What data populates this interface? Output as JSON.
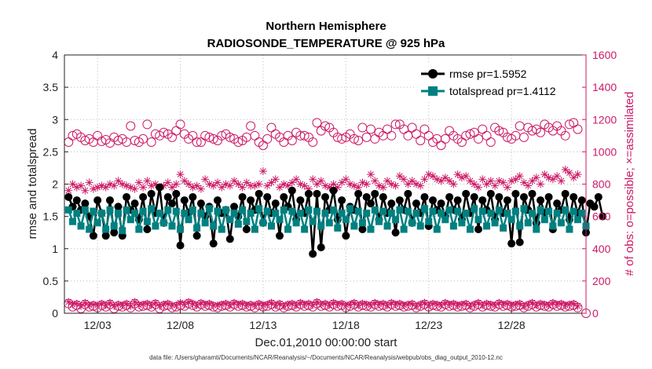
{
  "chart_data": {
    "type": "line",
    "title": "Northern Hemisphere",
    "subtitle": "RADIOSONDE_TEMPERATURE @ 925 hPa",
    "xlabel": "Dec.01,2010 00:00:00 start",
    "ylabel_left": "rmse and totalspread",
    "ylabel_right": "# of obs: o=possible; ×=assimilated",
    "footer": "data file: /Users/gharamti/Documents/NCAR/Reanalysis/~/Documents/NCAR/Reanalysis/webpub/obs_diag_output_2010-12.nc",
    "xlim": [
      1,
      32.5
    ],
    "ylim_left": [
      0,
      4
    ],
    "ylim_right": [
      0,
      1600
    ],
    "yticks_left": [
      "0",
      "0.5",
      "1",
      "1.5",
      "2",
      "2.5",
      "3",
      "3.5",
      "4"
    ],
    "yticks_right": [
      "0",
      "200",
      "400",
      "600",
      "800",
      "1000",
      "1200",
      "1400",
      "1600"
    ],
    "xticks": [
      {
        "x": 3,
        "label": "12/03"
      },
      {
        "x": 8,
        "label": "12/08"
      },
      {
        "x": 13,
        "label": "12/13"
      },
      {
        "x": 18,
        "label": "12/18"
      },
      {
        "x": 23,
        "label": "12/23"
      },
      {
        "x": 28,
        "label": "12/28"
      }
    ],
    "legend": [
      {
        "name": "rmse",
        "label": "rmse pr=1.5952"
      },
      {
        "name": "totalspread",
        "label": "totalspread pr=1.4112"
      }
    ],
    "colors": {
      "rmse": "#000000",
      "totalspread": "#008080",
      "obs": "#cc1a66"
    },
    "grid": true,
    "legend_position": "top-right",
    "x_start": 1.25,
    "x_step": 0.25,
    "series": [
      {
        "name": "rmse",
        "values": [
          1.8,
          1.65,
          1.75,
          1.6,
          1.7,
          1.5,
          1.2,
          1.75,
          1.55,
          1.2,
          1.75,
          1.25,
          1.65,
          1.2,
          1.8,
          1.6,
          1.7,
          1.45,
          1.8,
          1.3,
          1.85,
          1.55,
          1.95,
          1.4,
          1.8,
          1.7,
          1.85,
          1.05,
          1.75,
          1.55,
          1.8,
          1.2,
          1.7,
          1.5,
          1.65,
          1.08,
          1.75,
          1.55,
          1.6,
          1.15,
          1.65,
          1.5,
          1.8,
          1.3,
          1.75,
          1.6,
          1.85,
          1.4,
          1.8,
          1.55,
          1.7,
          1.2,
          1.8,
          1.65,
          1.9,
          1.45,
          1.75,
          1.55,
          1.85,
          0.92,
          1.85,
          1.02,
          1.8,
          1.6,
          1.9,
          1.45,
          1.75,
          1.2,
          1.65,
          1.6,
          1.85,
          1.3,
          1.8,
          1.7,
          1.85,
          1.45,
          1.8,
          1.55,
          1.7,
          1.25,
          1.75,
          1.6,
          1.85,
          1.4,
          1.7,
          1.55,
          1.8,
          1.35,
          1.75,
          1.6,
          1.7,
          1.5,
          1.8,
          1.6,
          1.75,
          1.45,
          1.85,
          1.55,
          1.8,
          1.3,
          1.75,
          1.6,
          1.85,
          1.45,
          1.8,
          1.55,
          1.75,
          1.08,
          1.85,
          1.1,
          1.8,
          1.6,
          1.85,
          1.4,
          1.75,
          1.55,
          1.8,
          1.3,
          1.7,
          1.6,
          1.85,
          1.45,
          1.8,
          1.55,
          1.75,
          1.25,
          1.7,
          1.65,
          1.8,
          1.5
        ]
      },
      {
        "name": "totalspread",
        "values": [
          1.6,
          1.42,
          1.55,
          1.35,
          1.6,
          1.3,
          1.58,
          1.4,
          1.55,
          1.3,
          1.6,
          1.35,
          1.55,
          1.28,
          1.6,
          1.45,
          1.55,
          1.3,
          1.58,
          1.42,
          1.62,
          1.35,
          1.55,
          1.4,
          1.6,
          1.35,
          1.58,
          1.3,
          1.55,
          1.45,
          1.6,
          1.32,
          1.55,
          1.4,
          1.62,
          1.35,
          1.58,
          1.3,
          1.6,
          1.45,
          1.55,
          1.38,
          1.6,
          1.42,
          1.55,
          1.3,
          1.62,
          1.4,
          1.58,
          1.35,
          1.55,
          1.45,
          1.6,
          1.3,
          1.58,
          1.4,
          1.55,
          1.3,
          1.6,
          1.42,
          1.58,
          1.35,
          1.55,
          1.4,
          1.6,
          1.32,
          1.55,
          1.45,
          1.62,
          1.35,
          1.58,
          1.4,
          1.55,
          1.3,
          1.6,
          1.42,
          1.58,
          1.35,
          1.55,
          1.45,
          1.6,
          1.3,
          1.58,
          1.4,
          1.55,
          1.35,
          1.62,
          1.42,
          1.58,
          1.3,
          1.55,
          1.45,
          1.6,
          1.35,
          1.58,
          1.4,
          1.55,
          1.3,
          1.62,
          1.45,
          1.58,
          1.35,
          1.55,
          1.4,
          1.6,
          1.32,
          1.55,
          1.45,
          1.58,
          1.35,
          1.62,
          1.4,
          1.55,
          1.3,
          1.6,
          1.45,
          1.58,
          1.35,
          1.55,
          1.4,
          1.6,
          1.3,
          1.58,
          1.45,
          1.55,
          1.35
        ]
      },
      {
        "name": "obs_possible",
        "values": [
          1060,
          1100,
          1110,
          1090,
          1070,
          1080,
          1060,
          1100,
          1065,
          1075,
          1055,
          1090,
          1070,
          1080,
          1060,
          1160,
          1070,
          1060,
          1080,
          1170,
          1060,
          1110,
          1100,
          1120,
          1110,
          1090,
          1130,
          1170,
          1110,
          1080,
          1100,
          1060,
          1060,
          1100,
          1090,
          1080,
          1070,
          1100,
          1110,
          1090,
          1080,
          1060,
          1070,
          1090,
          1160,
          1100,
          1060,
          1040,
          1080,
          1150,
          1110,
          1090,
          1060,
          1100,
          1070,
          1120,
          1100,
          1100,
          1090,
          1060,
          1180,
          1130,
          1160,
          1150,
          1120,
          1090,
          1080,
          1090,
          1110,
          1080,
          1070,
          1150,
          1090,
          1140,
          1080,
          1120,
          1100,
          1140,
          1100,
          1170,
          1170,
          1140,
          1100,
          1150,
          1110,
          1070,
          1140,
          1100,
          1060,
          1080,
          1040,
          1080,
          1130,
          1100,
          1080,
          1060,
          1100,
          1110,
          1120,
          1080,
          1140,
          1100,
          1060,
          1150,
          1130,
          1120,
          1090,
          1080,
          1100,
          1160,
          1090,
          1150,
          1130,
          1140,
          1120,
          1170,
          1150,
          1130,
          1160,
          1130,
          1100,
          1170,
          1180,
          1140
        ]
      },
      {
        "name": "obs_assimilated",
        "values": [
          760,
          800,
          780,
          790,
          760,
          810,
          770,
          780,
          790,
          780,
          800,
          790,
          820,
          800,
          790,
          780,
          770,
          810,
          780,
          820,
          790,
          800,
          780,
          790,
          810,
          780,
          800,
          860,
          820,
          800,
          780,
          790,
          770,
          830,
          800,
          790,
          810,
          780,
          800,
          790,
          820,
          800,
          780,
          810,
          790,
          790,
          800,
          880,
          790,
          810,
          830,
          780,
          800,
          790,
          810,
          830,
          800,
          790,
          770,
          830,
          800,
          820,
          790,
          780,
          800,
          780,
          810,
          830,
          800,
          790,
          780,
          810,
          800,
          860,
          820,
          790,
          780,
          820,
          800,
          790,
          850,
          830,
          800,
          820,
          800,
          790,
          830,
          860,
          850,
          830,
          820,
          840,
          820,
          800,
          860,
          840,
          850,
          820,
          800,
          780,
          830,
          800,
          820,
          790,
          820,
          810,
          780,
          820,
          830,
          850,
          810,
          790,
          820,
          840,
          800,
          860,
          840,
          830,
          850,
          820,
          890,
          870,
          840,
          860
        ]
      },
      {
        "name": "obs_possible_low",
        "values": [
          60,
          40,
          50,
          30,
          55,
          40,
          45,
          35,
          50,
          40,
          55,
          30,
          45,
          40,
          50,
          35,
          60,
          40,
          45,
          50,
          40,
          55,
          30,
          45,
          50,
          35,
          40,
          50,
          45,
          60,
          50,
          40,
          55,
          45,
          50,
          40,
          35,
          45,
          50,
          40,
          55,
          45,
          50,
          40,
          45,
          35,
          50,
          40,
          45,
          55,
          40,
          50,
          35,
          45,
          50,
          40,
          55,
          45,
          50,
          40,
          60,
          45,
          50,
          40,
          55,
          45,
          50,
          35,
          45,
          55,
          40,
          50,
          45,
          40,
          55,
          45,
          50,
          40,
          55,
          45,
          50,
          40,
          45,
          50,
          35,
          45,
          55,
          40,
          50,
          45,
          40,
          55,
          45,
          50,
          40,
          45,
          50,
          35,
          45,
          55,
          40,
          50,
          45,
          40,
          55,
          45,
          50,
          40,
          45,
          50,
          35,
          45,
          55,
          40,
          50,
          45,
          40,
          55,
          45,
          50,
          40,
          45,
          50,
          35
        ]
      },
      {
        "name": "obs_assimilated_low",
        "values": [
          70,
          55,
          60,
          45,
          65,
          50,
          55,
          50,
          60,
          50,
          65,
          45,
          55,
          50,
          60,
          45,
          70,
          50,
          55,
          60,
          50,
          65,
          45,
          55,
          60,
          50,
          50,
          65,
          55,
          70,
          60,
          50,
          65,
          55,
          60,
          50,
          50,
          55,
          60,
          50,
          65,
          55,
          60,
          50,
          55,
          50,
          60,
          50,
          55,
          65,
          50,
          60,
          45,
          55,
          60,
          50,
          65,
          55,
          60,
          50,
          70,
          55,
          60,
          50,
          65,
          55,
          60,
          50,
          55,
          65,
          50,
          60,
          55,
          50,
          65,
          55,
          60,
          50,
          65,
          55,
          60,
          50,
          55,
          60,
          45,
          55,
          65,
          50,
          60,
          55,
          50,
          65,
          55,
          60,
          50,
          55,
          60,
          45,
          55,
          65,
          50,
          60,
          55,
          50,
          65,
          55,
          60,
          50,
          55,
          60,
          45,
          55,
          65,
          50,
          60,
          55,
          50,
          65,
          55,
          60,
          50,
          55,
          60,
          45
        ]
      }
    ]
  }
}
